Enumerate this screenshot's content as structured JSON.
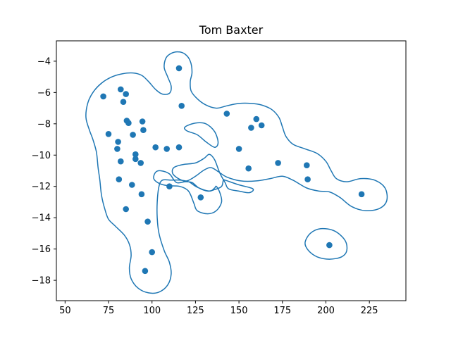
{
  "chart_data": {
    "type": "scatter",
    "title": "Tom Baxter",
    "xlabel": "",
    "ylabel": "",
    "xlim": [
      45,
      246
    ],
    "ylim": [
      -19.3,
      -2.7
    ],
    "xticks": [
      50,
      75,
      100,
      125,
      150,
      175,
      200,
      225
    ],
    "yticks": [
      -18,
      -16,
      -14,
      -12,
      -10,
      -8,
      -6,
      -4
    ],
    "xtick_labels": [
      "50",
      "75",
      "100",
      "125",
      "150",
      "175",
      "200",
      "225"
    ],
    "ytick_labels": [
      "−18",
      "−16",
      "−14",
      "−12",
      "−10",
      "−8",
      "−6",
      "−4"
    ],
    "grid": false,
    "colors": {
      "points": "#1f77b4",
      "contour": "#1f77b4"
    },
    "points": [
      [
        115.5,
        -4.45
      ],
      [
        82,
        -5.8
      ],
      [
        85,
        -6.1
      ],
      [
        72,
        -6.25
      ],
      [
        83.5,
        -6.6
      ],
      [
        117,
        -6.85
      ],
      [
        143,
        -7.35
      ],
      [
        160,
        -7.7
      ],
      [
        85.5,
        -7.8
      ],
      [
        86.5,
        -7.95
      ],
      [
        94.5,
        -7.85
      ],
      [
        163,
        -8.1
      ],
      [
        157,
        -8.25
      ],
      [
        95,
        -8.4
      ],
      [
        75,
        -8.65
      ],
      [
        89,
        -8.7
      ],
      [
        80.5,
        -9.15
      ],
      [
        102,
        -9.5
      ],
      [
        108.5,
        -9.6
      ],
      [
        115.5,
        -9.5
      ],
      [
        150,
        -9.6
      ],
      [
        80,
        -9.6
      ],
      [
        90.5,
        -9.95
      ],
      [
        90.5,
        -10.25
      ],
      [
        82,
        -10.4
      ],
      [
        93.5,
        -10.5
      ],
      [
        172.5,
        -10.5
      ],
      [
        189,
        -10.65
      ],
      [
        155.5,
        -10.85
      ],
      [
        81,
        -11.55
      ],
      [
        189.5,
        -11.55
      ],
      [
        88.5,
        -11.9
      ],
      [
        110,
        -12.0
      ],
      [
        94,
        -12.5
      ],
      [
        220.5,
        -12.5
      ],
      [
        128,
        -12.7
      ],
      [
        85,
        -13.45
      ],
      [
        97.5,
        -14.25
      ],
      [
        202,
        -15.75
      ],
      [
        100,
        -16.2
      ],
      [
        96,
        -17.4
      ]
    ],
    "contours": [
      [
        [
          62,
          -7.6
        ],
        [
          63,
          -6.7
        ],
        [
          66,
          -6.0
        ],
        [
          71,
          -5.4
        ],
        [
          77,
          -5.0
        ],
        [
          83,
          -4.8
        ],
        [
          89,
          -4.75
        ],
        [
          94,
          -4.9
        ],
        [
          98,
          -5.3
        ],
        [
          102,
          -5.8
        ],
        [
          106,
          -6.1
        ],
        [
          110,
          -6.05
        ],
        [
          111,
          -5.6
        ],
        [
          109,
          -5.0
        ],
        [
          107,
          -4.4
        ],
        [
          108,
          -3.8
        ],
        [
          111,
          -3.5
        ],
        [
          115,
          -3.4
        ],
        [
          119,
          -3.55
        ],
        [
          122,
          -4.0
        ],
        [
          123,
          -4.7
        ],
        [
          122,
          -5.3
        ],
        [
          122.5,
          -5.9
        ],
        [
          126,
          -6.4
        ],
        [
          131,
          -6.8
        ],
        [
          137,
          -7.0
        ],
        [
          143,
          -6.85
        ],
        [
          150,
          -6.7
        ],
        [
          157,
          -6.7
        ],
        [
          163,
          -6.8
        ],
        [
          169,
          -7.1
        ],
        [
          173,
          -7.6
        ],
        [
          175,
          -8.2
        ],
        [
          177,
          -8.8
        ],
        [
          181,
          -9.3
        ],
        [
          188,
          -9.6
        ],
        [
          195,
          -9.9
        ],
        [
          200,
          -10.4
        ],
        [
          203,
          -11.0
        ],
        [
          206,
          -11.5
        ],
        [
          212,
          -11.7
        ],
        [
          220,
          -11.5
        ],
        [
          228,
          -11.6
        ],
        [
          234,
          -12.1
        ],
        [
          235,
          -12.9
        ],
        [
          231,
          -13.4
        ],
        [
          223,
          -13.55
        ],
        [
          215,
          -13.3
        ],
        [
          208,
          -12.7
        ],
        [
          202,
          -12.35
        ],
        [
          196,
          -12.3
        ],
        [
          189,
          -12.1
        ],
        [
          181,
          -11.6
        ],
        [
          175,
          -11.35
        ],
        [
          168,
          -11.5
        ],
        [
          160,
          -11.65
        ],
        [
          151,
          -11.65
        ],
        [
          143,
          -11.4
        ],
        [
          138,
          -11.05
        ],
        [
          134,
          -10.8
        ],
        [
          130,
          -10.95
        ],
        [
          125,
          -11.35
        ],
        [
          120,
          -11.65
        ],
        [
          116,
          -11.55
        ],
        [
          112,
          -11.2
        ],
        [
          112.5,
          -10.8
        ],
        [
          118,
          -10.6
        ],
        [
          125,
          -10.5
        ],
        [
          130,
          -10.2
        ],
        [
          133,
          -9.95
        ],
        [
          136,
          -10.3
        ],
        [
          139,
          -11.15
        ],
        [
          142,
          -11.75
        ],
        [
          144,
          -12.15
        ],
        [
          150,
          -12.3
        ],
        [
          156,
          -12.4
        ],
        [
          158,
          -12.15
        ],
        [
          150,
          -11.9
        ],
        [
          142,
          -11.6
        ],
        [
          141,
          -11.6
        ],
        [
          140,
          -12.0
        ],
        [
          136,
          -12.2
        ],
        [
          132,
          -12.3
        ],
        [
          127,
          -12.1
        ],
        [
          123,
          -11.75
        ],
        [
          119,
          -11.7
        ],
        [
          114,
          -11.75
        ],
        [
          110,
          -11.2
        ],
        [
          105,
          -11.0
        ],
        [
          102,
          -11.1
        ],
        [
          101,
          -11.5
        ],
        [
          104,
          -11.8
        ],
        [
          109,
          -11.95
        ],
        [
          116,
          -12.0
        ],
        [
          121,
          -12.3
        ],
        [
          124,
          -13.05
        ],
        [
          126,
          -13.55
        ],
        [
          132,
          -13.75
        ],
        [
          137,
          -13.55
        ],
        [
          140,
          -13.0
        ],
        [
          139,
          -12.4
        ],
        [
          137,
          -12.0
        ],
        [
          136,
          -12.1
        ],
        [
          133,
          -12.3
        ],
        [
          126,
          -12.05
        ],
        [
          121,
          -11.7
        ],
        [
          116,
          -11.6
        ],
        [
          111,
          -11.6
        ],
        [
          106,
          -11.6
        ],
        [
          104,
          -12.0
        ],
        [
          103,
          -13.0
        ],
        [
          103,
          -14.0
        ],
        [
          104,
          -15.0
        ],
        [
          107,
          -16.1
        ],
        [
          110,
          -16.85
        ],
        [
          111,
          -17.6
        ],
        [
          109,
          -18.3
        ],
        [
          104,
          -18.75
        ],
        [
          98,
          -18.8
        ],
        [
          92,
          -18.5
        ],
        [
          88,
          -17.9
        ],
        [
          87,
          -17.2
        ],
        [
          88,
          -16.4
        ],
        [
          87,
          -15.7
        ],
        [
          84,
          -15.1
        ],
        [
          79,
          -14.55
        ],
        [
          75,
          -14.1
        ],
        [
          73,
          -13.5
        ],
        [
          71,
          -12.6
        ],
        [
          70,
          -11.6
        ],
        [
          69,
          -10.8
        ],
        [
          68,
          -9.8
        ],
        [
          66,
          -9.0
        ],
        [
          64,
          -8.4
        ],
        [
          62,
          -7.6
        ]
      ],
      [
        [
          119,
          -8.2
        ],
        [
          125,
          -7.95
        ],
        [
          131,
          -8.0
        ],
        [
          136,
          -8.5
        ],
        [
          138,
          -9.2
        ],
        [
          136,
          -9.5
        ],
        [
          131,
          -9.15
        ],
        [
          126,
          -8.7
        ],
        [
          120,
          -8.45
        ],
        [
          119,
          -8.2
        ]
      ],
      [
        [
          188,
          -15.6
        ],
        [
          191,
          -15.0
        ],
        [
          197,
          -14.7
        ],
        [
          205,
          -14.85
        ],
        [
          211,
          -15.45
        ],
        [
          212,
          -16.1
        ],
        [
          209,
          -16.5
        ],
        [
          202,
          -16.65
        ],
        [
          195,
          -16.5
        ],
        [
          190,
          -16.1
        ],
        [
          188,
          -15.6
        ]
      ]
    ]
  }
}
